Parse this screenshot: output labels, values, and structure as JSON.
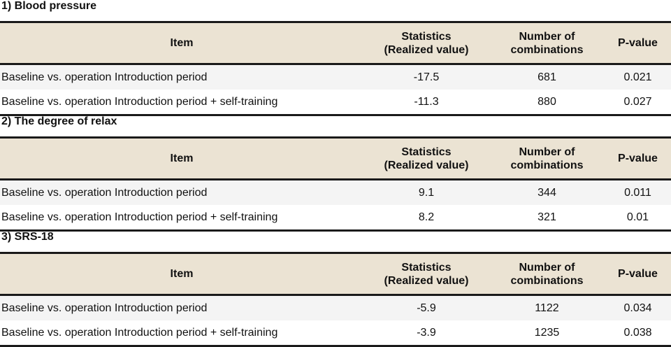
{
  "columns": {
    "item": "Item",
    "statistics_line1": "Statistics",
    "statistics_line2": "(Realized value)",
    "combinations_line1": "Number of",
    "combinations_line2": "combinations",
    "pvalue": "P-value"
  },
  "sections": [
    {
      "title": "1) Blood pressure",
      "rows": [
        {
          "item": "Baseline vs. operation Introduction period",
          "statistics": "-17.5",
          "combinations": "681",
          "pvalue": "0.021"
        },
        {
          "item": "Baseline vs. operation Introduction period + self-training",
          "statistics": "-11.3",
          "combinations": "880",
          "pvalue": "0.027"
        }
      ]
    },
    {
      "title": "2) The degree of relax",
      "rows": [
        {
          "item": "Baseline vs. operation Introduction period",
          "statistics": "9.1",
          "combinations": "344",
          "pvalue": "0.011"
        },
        {
          "item": "Baseline vs. operation Introduction period + self-training",
          "statistics": "8.2",
          "combinations": "321",
          "pvalue": "0.01"
        }
      ]
    },
    {
      "title": "3) SRS-18",
      "rows": [
        {
          "item": "Baseline vs. operation Introduction period",
          "statistics": "-5.9",
          "combinations": "1122",
          "pvalue": "0.034"
        },
        {
          "item": "Baseline vs. operation Introduction period + self-training",
          "statistics": "-3.9",
          "combinations": "1235",
          "pvalue": "0.038"
        }
      ]
    }
  ],
  "colors": {
    "header_background": "#ebe3d3",
    "row_shade": "#f4f4f4",
    "rule": "#1a1a1a"
  }
}
